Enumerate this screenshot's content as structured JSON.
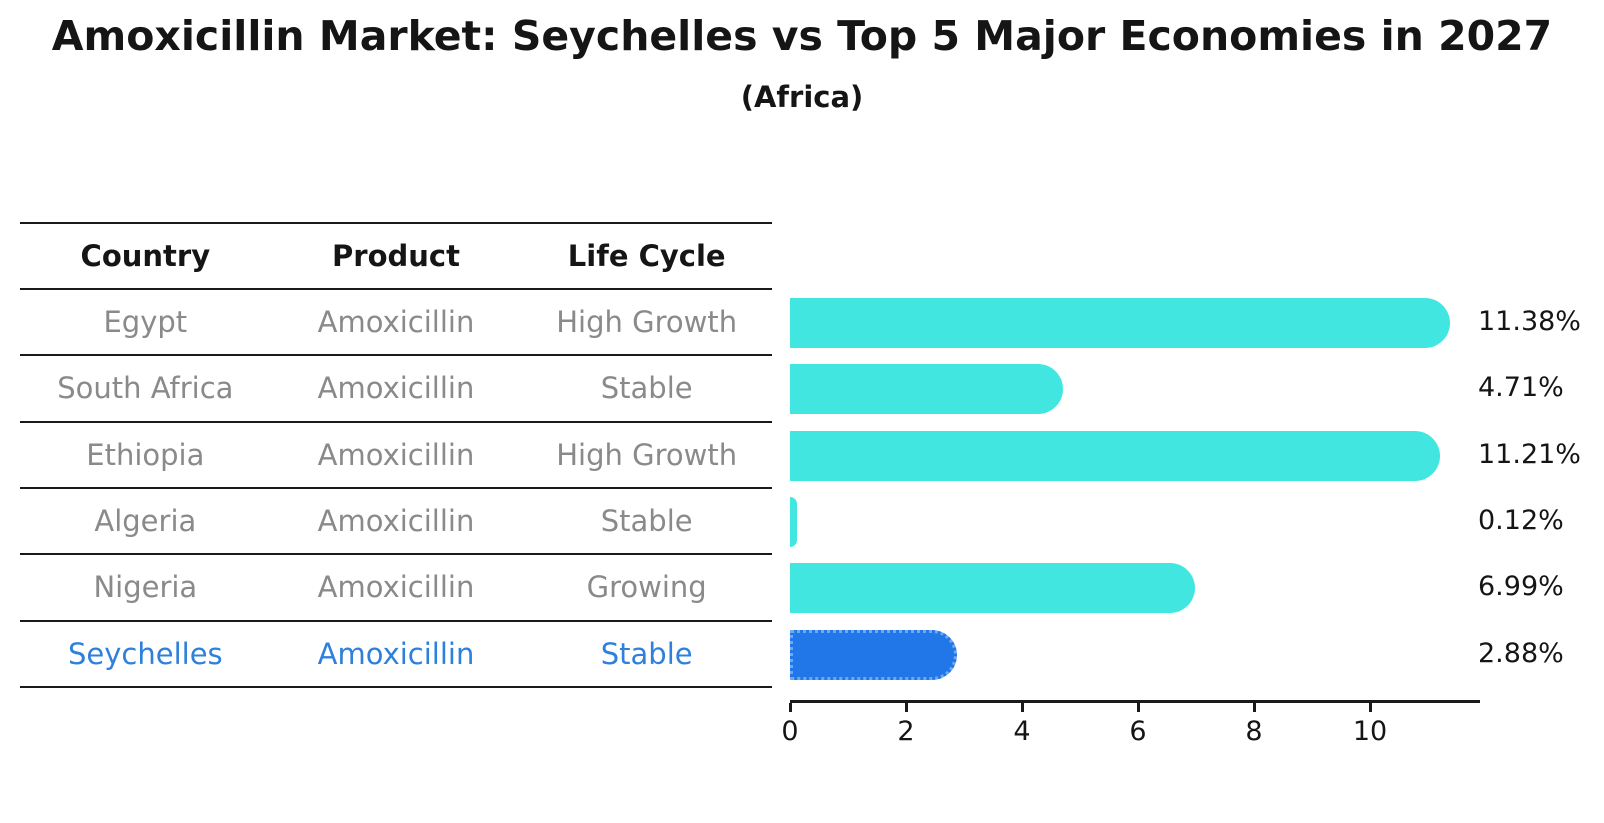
{
  "chart_data": {
    "type": "bar",
    "orientation": "horizontal",
    "title": "Amoxicillin Market: Seychelles vs Top 5 Major Economies in 2027",
    "subtitle": "(Africa)",
    "categories": [
      "Egypt",
      "South Africa",
      "Ethiopia",
      "Algeria",
      "Nigeria",
      "Seychelles"
    ],
    "values": [
      11.38,
      4.71,
      11.21,
      0.12,
      6.99,
      2.88
    ],
    "value_labels": [
      "11.38%",
      "4.71%",
      "11.21%",
      "0.12%",
      "6.99%",
      "2.88%"
    ],
    "x_ticks": [
      0,
      2,
      4,
      6,
      8,
      10
    ],
    "xlim": [
      0,
      11.9
    ],
    "grid": false,
    "legend": false,
    "bar_color": "#42E6E0",
    "highlight_index": 5,
    "highlight_bar_color": "#2277E8",
    "highlight_border_color": "#6FA8EE"
  },
  "table": {
    "headers": [
      "Country",
      "Product",
      "Life Cycle"
    ],
    "rows": [
      {
        "country": "Egypt",
        "product": "Amoxicillin",
        "life_cycle": "High Growth",
        "highlighted": false
      },
      {
        "country": "South Africa",
        "product": "Amoxicillin",
        "life_cycle": "Stable",
        "highlighted": false
      },
      {
        "country": "Ethiopia",
        "product": "Amoxicillin",
        "life_cycle": "High Growth",
        "highlighted": false
      },
      {
        "country": "Algeria",
        "product": "Amoxicillin",
        "life_cycle": "Stable",
        "highlighted": false
      },
      {
        "country": "Nigeria",
        "product": "Amoxicillin",
        "life_cycle": "Growing",
        "highlighted": false
      },
      {
        "country": "Seychelles",
        "product": "Amoxicillin",
        "life_cycle": "Stable",
        "highlighted": true
      }
    ]
  },
  "colors": {
    "text_primary": "#151515",
    "text_muted": "#8a8a8a",
    "highlight_text": "#2e80dc",
    "rule": "#1a1a1a"
  }
}
